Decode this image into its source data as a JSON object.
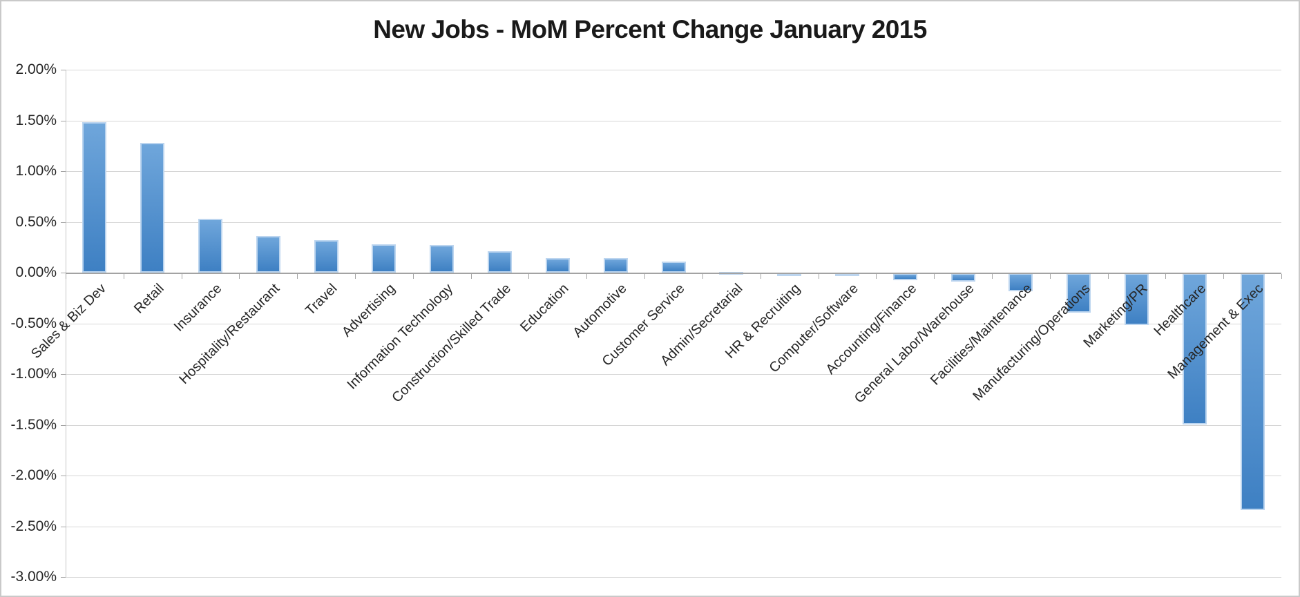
{
  "chart_data": {
    "type": "bar",
    "title": "New Jobs - MoM Percent Change January 2015",
    "categories": [
      "Sales & Biz Dev",
      "Retail",
      "Insurance",
      "Hospitality/Restaurant",
      "Travel",
      "Advertising",
      "Information Technology",
      "Construction/Skilled Trade",
      "Education",
      "Automotive",
      "Customer Service",
      "Admin/Secretarial",
      "HR & Recruiting",
      "Computer/Software",
      "Accounting/Finance",
      "General Labor/Warehouse",
      "Facilities/Maintenance",
      "Manufacturing/Operations",
      "Marketing/PR",
      "Healthcare",
      "Management & Exec"
    ],
    "values": [
      1.48,
      1.28,
      0.53,
      0.36,
      0.32,
      0.28,
      0.27,
      0.21,
      0.14,
      0.14,
      0.11,
      0.01,
      -0.01,
      -0.03,
      -0.07,
      -0.08,
      -0.18,
      -0.39,
      -0.51,
      -1.49,
      -2.33
    ],
    "value_unit": "percent",
    "xlabel": "",
    "ylabel": "",
    "ylim": [
      -3.0,
      2.0
    ],
    "y_tick_step": 0.5,
    "y_tick_labels": [
      "2.00%",
      "1.50%",
      "1.00%",
      "0.50%",
      "0.00%",
      "-0.50%",
      "-1.00%",
      "-1.50%",
      "-2.00%",
      "-2.50%",
      "-3.00%"
    ],
    "grid": true,
    "legend": false,
    "x_labels_rotation_deg": 45,
    "colors": {
      "bar_gradient_top": "#6FA6DB",
      "bar_gradient_bottom": "#3E80C3",
      "bar_border": "#BCD5EF",
      "gridline": "#D6D6D6",
      "axis_line": "#A3A3A3",
      "y_axis_line": "#C4C4C4",
      "text": "#262626",
      "title_text": "#1A1A1A"
    }
  }
}
